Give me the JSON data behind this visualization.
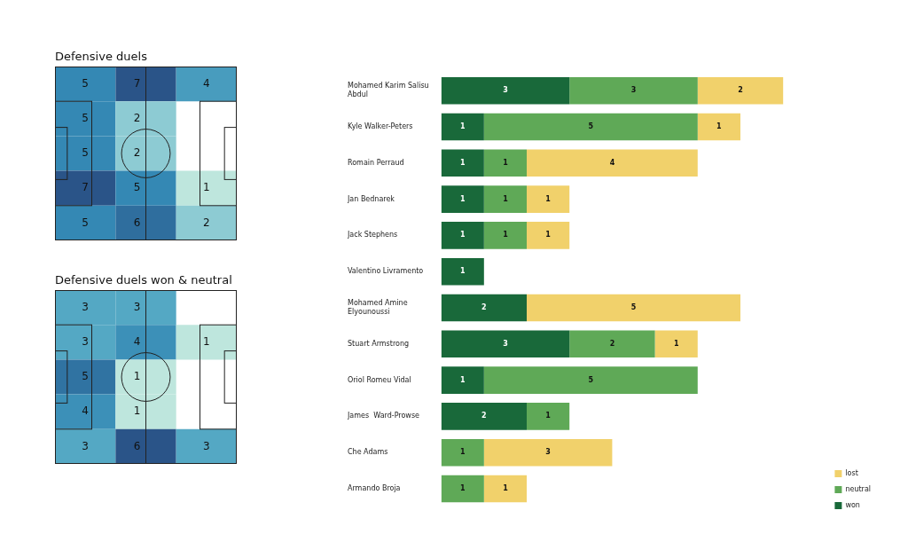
{
  "chart_data": [
    {
      "type": "heatmap",
      "data_labels": true,
      "title": "Defensive duels",
      "categories": [
        null,
        null,
        null
      ],
      "y_categories": [
        null,
        null,
        null,
        null,
        null
      ],
      "cells": [
        [
          5,
          7,
          4
        ],
        [
          5,
          2,
          null
        ],
        [
          5,
          2,
          null
        ],
        [
          7,
          5,
          1
        ],
        [
          5,
          6,
          2
        ]
      ]
    },
    {
      "type": "heatmap",
      "data_labels": true,
      "title": "Defensive duels won & neutral",
      "categories": [
        null,
        null,
        null
      ],
      "y_categories": [
        null,
        null,
        null,
        null,
        null
      ],
      "cells": [
        [
          3,
          3,
          null
        ],
        [
          3,
          4,
          1
        ],
        [
          5,
          1,
          null
        ],
        [
          4,
          1,
          null
        ],
        [
          3,
          6,
          3
        ]
      ]
    },
    {
      "type": "bar",
      "orientation": "horizontal",
      "stacked": true,
      "data_labels": true,
      "legend": "bottom right",
      "tick_labels": "y",
      "categories": [
        "Mohamed Karim Salisu Abdul",
        "Kyle Walker-Peters",
        "Romain Perraud",
        "Jan Bednarek",
        "Jack Stephens",
        "Valentino Livramento",
        "Mohamed Amine Elyounoussi",
        "Stuart Armstrong",
        "Oriol Romeu Vidal",
        "James  Ward-Prowse",
        "Che Adams",
        "Armando Broja"
      ],
      "series": [
        {
          "name": "won",
          "color": "#19693a",
          "values": [
            3,
            1,
            1,
            1,
            1,
            1,
            2,
            3,
            1,
            2,
            null,
            null
          ]
        },
        {
          "name": "neutral",
          "color": "#5fa957",
          "values": [
            3,
            5,
            1,
            1,
            1,
            null,
            null,
            2,
            5,
            1,
            1,
            1
          ]
        },
        {
          "name": "lost",
          "color": "#f1d16b",
          "values": [
            2,
            1,
            4,
            1,
            1,
            null,
            5,
            1,
            null,
            null,
            3,
            1
          ]
        }
      ]
    }
  ]
}
